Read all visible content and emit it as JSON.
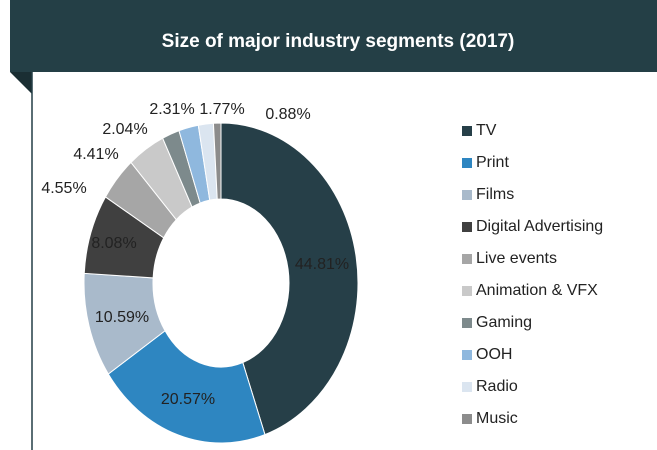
{
  "chart_data": {
    "type": "donut",
    "title": "Size of major industry segments (2017)",
    "categories": [
      "TV",
      "Print",
      "Films",
      "Digital Advertising",
      "Live events",
      "Animation & VFX",
      "Gaming",
      "OOH",
      "Radio",
      "Music"
    ],
    "values": [
      44.81,
      20.57,
      10.59,
      8.08,
      4.55,
      4.41,
      2.04,
      2.31,
      1.77,
      0.88
    ],
    "value_labels": [
      "44.81%",
      "20.57%",
      "10.59%",
      "8.08%",
      "4.55%",
      "4.41%",
      "2.04%",
      "2.31%",
      "1.77%",
      "0.88%"
    ],
    "colors": [
      "#263f48",
      "#2e86c1",
      "#a9bacb",
      "#404040",
      "#a6a6a6",
      "#c9c9c9",
      "#7d8a8c",
      "#8fb8de",
      "#dbe5f0",
      "#8c8c8c"
    ],
    "legend": "right"
  }
}
